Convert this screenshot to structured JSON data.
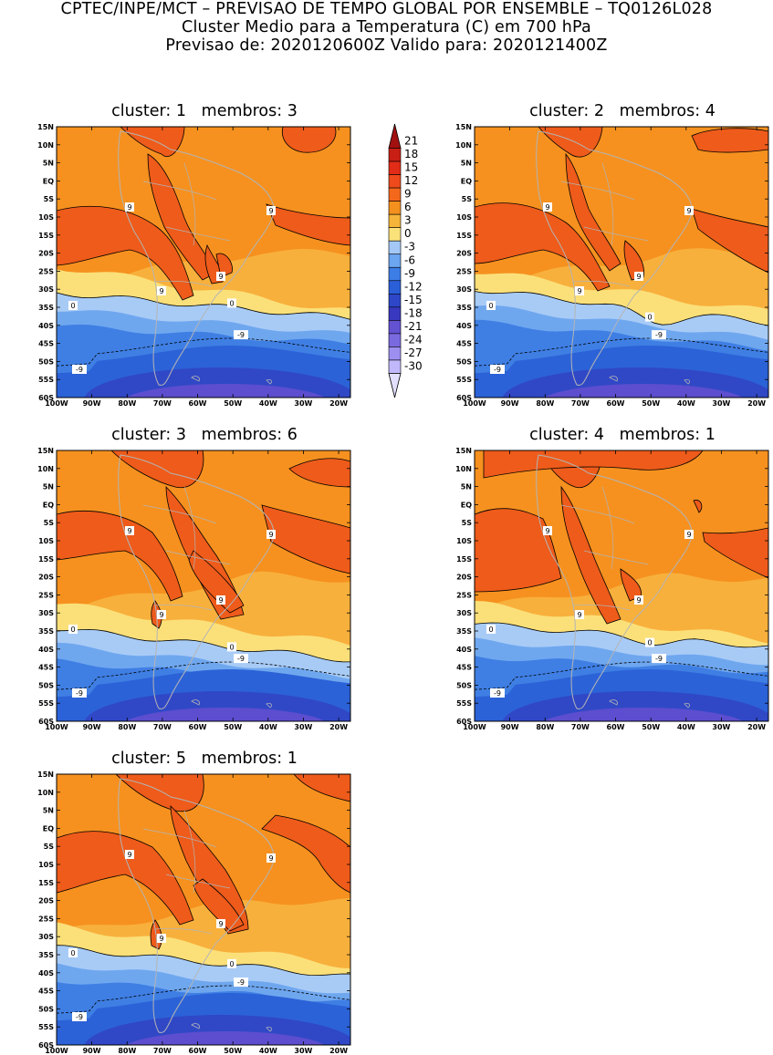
{
  "header": {
    "line1": "CPTEC/INPE/MCT – PREVISAO DE TEMPO GLOBAL POR ENSEMBLE – TQ0126L028",
    "line2": "Cluster Medio para a Temperatura (C) em 700 hPa",
    "line3": "Previsao de: 2020120600Z   Valido para: 2020121400Z"
  },
  "panels": [
    {
      "title": "cluster: 1   membros: 3"
    },
    {
      "title": "cluster: 2   membros: 4"
    },
    {
      "title": "cluster: 3   membros: 6"
    },
    {
      "title": "cluster: 4   membros: 1"
    },
    {
      "title": "cluster: 5   membros: 1"
    }
  ],
  "axes": {
    "lat_labels": [
      "15N",
      "10N",
      "5N",
      "EQ",
      "5S",
      "10S",
      "15S",
      "20S",
      "25S",
      "30S",
      "35S",
      "40S",
      "45S",
      "50S",
      "55S",
      "60S"
    ],
    "lon_labels": [
      "100W",
      "90W",
      "80W",
      "70W",
      "60W",
      "50W",
      "40W",
      "30W",
      "20W"
    ]
  },
  "colorbar": {
    "labels": [
      "21",
      "18",
      "15",
      "12",
      "9",
      "6",
      "3",
      "0",
      "-3",
      "-6",
      "-9",
      "-12",
      "-15",
      "-18",
      "-21",
      "-24",
      "-27",
      "-30"
    ],
    "colors": [
      "#a31010",
      "#c81e14",
      "#e12c18",
      "#ee4a1c",
      "#f4681c",
      "#f4901e",
      "#f6b43a",
      "#fae17a",
      "#a4c8f6",
      "#6ca5f0",
      "#3d7de6",
      "#2a5fd8",
      "#2d47c8",
      "#3838c0",
      "#6352d2",
      "#7a6ae0",
      "#9c8ff0",
      "#c0b8fa",
      "#e2dffd"
    ]
  },
  "contour_labels": {
    "nine": "9",
    "zero": "0",
    "minus_nine": "-9"
  },
  "colors": {
    "band_hot": "#ee5b1a",
    "band_warm": "#f6911f",
    "band_mild": "#f8b03c",
    "band_pale": "#fbe07a",
    "band_cool1": "#a8cbf6",
    "band_cool2": "#6fa7ef",
    "band_cool3": "#3f7fe4",
    "band_cold1": "#2c62d7",
    "band_cold2": "#3048c6",
    "band_cold3": "#5c4ecf",
    "coast": "#b4b4b4"
  }
}
